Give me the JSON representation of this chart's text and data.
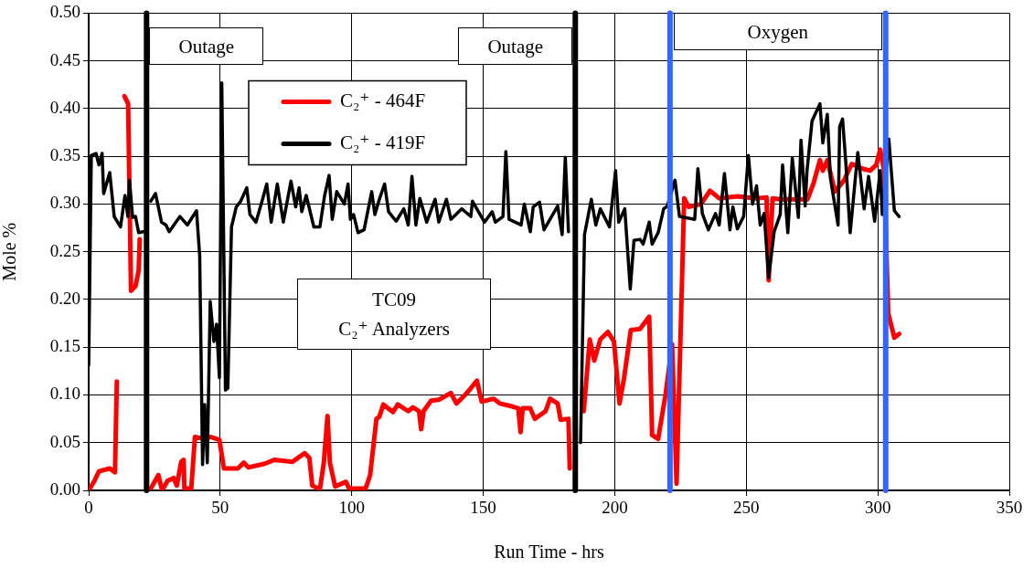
{
  "chart_data": {
    "type": "line",
    "xlabel": "Run Time - hrs",
    "ylabel": "Mole %",
    "xlim": [
      0,
      350
    ],
    "xticks": [
      0,
      50,
      100,
      150,
      200,
      250,
      300,
      350
    ],
    "ylim": [
      0,
      0.5
    ],
    "yticks": [
      {
        "value": 0,
        "label": "0.00"
      },
      {
        "value": 0.05,
        "label": "0.05"
      },
      {
        "value": 0.1,
        "label": "0.10"
      },
      {
        "value": 0.15,
        "label": "0.15"
      },
      {
        "value": 0.2,
        "label": "0.20"
      },
      {
        "value": 0.25,
        "label": "0.25"
      },
      {
        "value": 0.3,
        "label": "0.30"
      },
      {
        "value": 0.35,
        "label": "0.35"
      },
      {
        "value": 0.4,
        "label": "0.40"
      },
      {
        "value": 0.45,
        "label": "0.45"
      },
      {
        "value": 0.5,
        "label": "0.50"
      }
    ],
    "grid": true,
    "legend": "top left",
    "series": [
      {
        "name": "C₂⁺ - 464F",
        "color": "#ff0000",
        "x": [
          0,
          2.2,
          3.9,
          8,
          10,
          10.7,
          12,
          13.6,
          15,
          16.1,
          17.8,
          19,
          19.4,
          22,
          23.6,
          26.5,
          27.9,
          30,
          32.3,
          33.5,
          35.2,
          36.1,
          36.4,
          39,
          40.4,
          41.6,
          46.2,
          49.7,
          51.4,
          56.7,
          59,
          60.7,
          67,
          70.6,
          77.5,
          82.1,
          83.9,
          85,
          87.9,
          89.4,
          90.8,
          91.7,
          93.7,
          97.8,
          99,
          105.3,
          107,
          109.4,
          110.5,
          112,
          115.7,
          117.5,
          121.5,
          123.3,
          125.6,
          126.4,
          127.3,
          130.2,
          133.1,
          137.7,
          139.8,
          142.4,
          144.7,
          147.6,
          149.4,
          154,
          156.3,
          161,
          163.3,
          164.2,
          165,
          167.9,
          169.6,
          173.7,
          175.4,
          178.3,
          179.4,
          182.4,
          182.9,
          185,
          188.2,
          190.5,
          192.2,
          194.5,
          197.4,
          199.7,
          201.8,
          203.5,
          206.1,
          209.6,
          213.1,
          214.2,
          216.5,
          219.4,
          221.8,
          223.5,
          226.4,
          228.1,
          232.8,
          236.2,
          239.7,
          246.6,
          253.6,
          257.7,
          258.5,
          260,
          262.9,
          273.3,
          275.6,
          278,
          279.1,
          280.8,
          283.7,
          287.2,
          290.1,
          294.2,
          297.1,
          299.4,
          300.9,
          302.3,
          304,
          306.3,
          308.1
        ],
        "values": [
          0,
          0.01,
          0.02,
          0.023,
          0.019,
          0.114,
          null,
          0.413,
          0.405,
          0.209,
          0.214,
          0.23,
          0.263,
          null,
          0.002,
          0.016,
          0,
          0.01,
          0.013,
          0.005,
          0.03,
          0.032,
          0.002,
          0.002,
          0.056,
          0.055,
          0.056,
          0.053,
          0.023,
          0.023,
          0.029,
          0.024,
          0.028,
          0.032,
          0.03,
          0.039,
          0.034,
          0.005,
          0.001,
          0.029,
          0.078,
          0.029,
          0.004,
          0.009,
          0.002,
          0.002,
          0.016,
          0.075,
          0.077,
          0.09,
          0.082,
          0.09,
          0.083,
          0.087,
          0.083,
          0.064,
          0.083,
          0.094,
          0.095,
          0.102,
          0.091,
          0.098,
          0.105,
          0.115,
          0.093,
          0.096,
          0.091,
          0.088,
          0.086,
          0.061,
          0.086,
          0.086,
          0.075,
          0.083,
          0.096,
          0.091,
          0.074,
          0.075,
          0.023,
          null,
          0.083,
          0.158,
          0.136,
          0.158,
          0.166,
          0.156,
          0.091,
          0.117,
          0.168,
          0.169,
          0.182,
          0.058,
          0.054,
          0.102,
          0.153,
          0.007,
          0.306,
          0.297,
          0.3,
          0.314,
          0.306,
          0.308,
          0.306,
          0.307,
          0.22,
          0.306,
          0.305,
          0.305,
          0.322,
          0.346,
          0.335,
          0.346,
          0.313,
          0.325,
          0.342,
          0.337,
          0.335,
          0.341,
          0.357,
          0.337,
          0.185,
          0.16,
          0.164
        ]
      },
      {
        "name": "C₂⁺ - 419F",
        "color": "#000000",
        "x": [
          0,
          1,
          2.8,
          3.9,
          5.1,
          5.7,
          8,
          9.7,
          12.1,
          13.8,
          14.9,
          15.5,
          16.7,
          17.8,
          19,
          20.7,
          22,
          23.6,
          25.4,
          27.7,
          29.4,
          30.6,
          34.7,
          37.5,
          41,
          42.2,
          43.3,
          44.1,
          45.1,
          46.2,
          47.6,
          48.6,
          49.7,
          50.6,
          52,
          52.9,
          54.3,
          56.1,
          57.8,
          60.1,
          61.3,
          63.6,
          65.9,
          67.7,
          69.4,
          71.7,
          74,
          76.9,
          78.7,
          80,
          81,
          82.7,
          85.6,
          87.9,
          89.7,
          91.4,
          92.6,
          94.3,
          97.2,
          98.6,
          99.5,
          100.7,
          102.4,
          104.7,
          107.6,
          108.8,
          110.5,
          112.5,
          114,
          116.9,
          119.8,
          121.5,
          122.9,
          124.4,
          125.9,
          128.5,
          131.7,
          133.1,
          136,
          137.7,
          141.8,
          145.3,
          145.9,
          148.2,
          150.5,
          153.4,
          154.6,
          157.5,
          158.6,
          159.8,
          164.4,
          165.6,
          167.9,
          169,
          171.4,
          173.1,
          175.4,
          178.3,
          180,
          181.2,
          182.4,
          185,
          187,
          188.5,
          191.1,
          192.8,
          194.5,
          198,
          200.3,
          201.5,
          203.8,
          205.9,
          207.3,
          209.6,
          210.8,
          213.1,
          214.2,
          216.5,
          218.6,
          220,
          222.9,
          224.6,
          230.4,
          231.6,
          233.3,
          235.6,
          238.3,
          239.7,
          241.7,
          243.8,
          244.9,
          246.6,
          249,
          250.8,
          252.4,
          253.9,
          255.3,
          256.8,
          258.5,
          260.6,
          262.9,
          263.8,
          265.8,
          267.5,
          269.8,
          270.8,
          272.4,
          273.1,
          275,
          278,
          279.1,
          280.8,
          282,
          284.9,
          285.5,
          286.6,
          287.8,
          289.5,
          292.4,
          294.8,
          296.5,
          298.8,
          300.9,
          301.7,
          304.2,
          306.3,
          308.1
        ],
        "values": [
          0.131,
          0.351,
          0.353,
          0.341,
          0.353,
          0.311,
          0.333,
          0.287,
          0.276,
          0.309,
          0.287,
          0.325,
          0.286,
          0.287,
          0.27,
          0.271,
          null,
          0.303,
          0.311,
          0.281,
          0.278,
          0.271,
          0.287,
          0.278,
          0.293,
          0.246,
          0.027,
          0.09,
          0.029,
          0.198,
          0.156,
          0.174,
          0.118,
          0.427,
          0.105,
          0.107,
          0.276,
          0.297,
          0.303,
          0.317,
          0.289,
          0.281,
          0.303,
          0.321,
          0.281,
          0.321,
          0.281,
          0.324,
          0.297,
          0.317,
          0.292,
          0.309,
          0.276,
          0.276,
          0.309,
          0.33,
          0.284,
          0.313,
          0.3,
          0.321,
          0.284,
          0.289,
          0.27,
          0.273,
          0.313,
          0.289,
          0.305,
          0.321,
          0.292,
          0.282,
          0.295,
          0.278,
          0.329,
          0.278,
          0.306,
          0.281,
          0.305,
          0.281,
          0.305,
          0.284,
          0.295,
          0.287,
          0.303,
          0.292,
          0.281,
          0.292,
          0.281,
          0.287,
          0.355,
          0.284,
          0.278,
          0.3,
          0.271,
          0.297,
          0.302,
          0.273,
          0.284,
          0.298,
          0.268,
          0.349,
          0.271,
          null,
          0.05,
          0.268,
          0.305,
          0.278,
          0.295,
          0.276,
          0.335,
          0.281,
          0.295,
          0.211,
          0.262,
          0.263,
          0.258,
          0.281,
          0.258,
          0.27,
          0.295,
          0.298,
          0.325,
          0.287,
          0.284,
          0.337,
          0.29,
          0.273,
          0.29,
          0.278,
          0.332,
          0.273,
          0.297,
          0.274,
          0.287,
          0.351,
          0.3,
          0.319,
          0.278,
          0.29,
          0.223,
          0.271,
          0.289,
          0.341,
          0.27,
          0.348,
          0.286,
          0.367,
          0.298,
          0.335,
          0.387,
          0.405,
          0.364,
          0.394,
          0.327,
          0.278,
          0.381,
          0.389,
          0.345,
          0.27,
          0.354,
          0.295,
          0.329,
          0.282,
          0.335,
          0.289,
          0.368,
          0.293,
          0.287
        ]
      }
    ],
    "ref_lines": [
      {
        "axis": "x",
        "value": 22,
        "label": "Outage",
        "color": "#000000"
      },
      {
        "axis": "x",
        "value": 185,
        "label": "Outage",
        "color": "#000000"
      },
      {
        "axis": "x",
        "value": 221,
        "color": "#3366ff"
      },
      {
        "axis": "x",
        "value": 303,
        "color": "#3366ff"
      }
    ],
    "annotations": [
      "Oxygen",
      "TC09\nC₂⁺ Analyzers"
    ]
  }
}
